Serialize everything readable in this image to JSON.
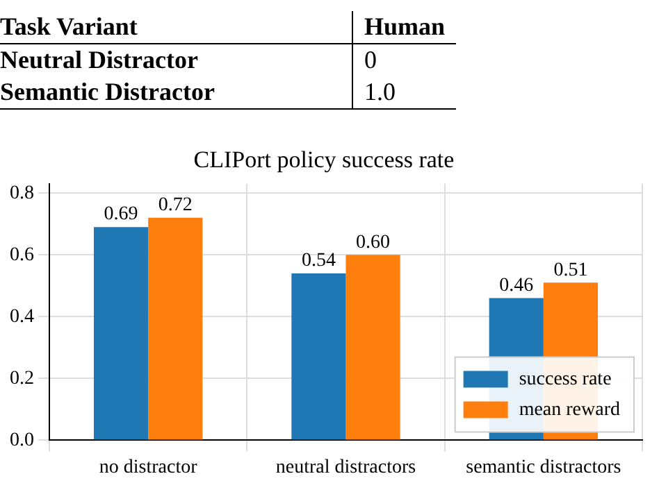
{
  "chart_data": [
    {
      "type": "other",
      "annotations": [
        "Task Variant",
        "Human",
        "Neutral Distractor",
        "0",
        "Semantic Distractor",
        "1.0"
      ]
    },
    {
      "type": "bar",
      "title": "CLIPort policy success rate",
      "categories": [
        "no distractor",
        "neutral distractors",
        "semantic distractors"
      ],
      "series": [
        {
          "name": "success rate",
          "color": "#1f77b4",
          "values": [
            0.69,
            0.54,
            0.46
          ],
          "value_labels": [
            "0.69",
            "0.54",
            "0.46"
          ]
        },
        {
          "name": "mean reward",
          "color": "#ff7f0e",
          "values": [
            0.72,
            0.6,
            0.51
          ],
          "value_labels": [
            "0.72",
            "0.60",
            "0.51"
          ]
        }
      ],
      "ylim": [
        0,
        0.83
      ],
      "yticks": [
        {
          "value": 0,
          "label": "0.0"
        },
        {
          "value": 0.2,
          "label": "0.2"
        },
        {
          "value": 0.4,
          "label": "0.4"
        },
        {
          "value": 0.6,
          "label": "0.6"
        },
        {
          "value": 0.8,
          "label": "0.8"
        }
      ],
      "grid": true,
      "legend": "bottom right"
    }
  ]
}
